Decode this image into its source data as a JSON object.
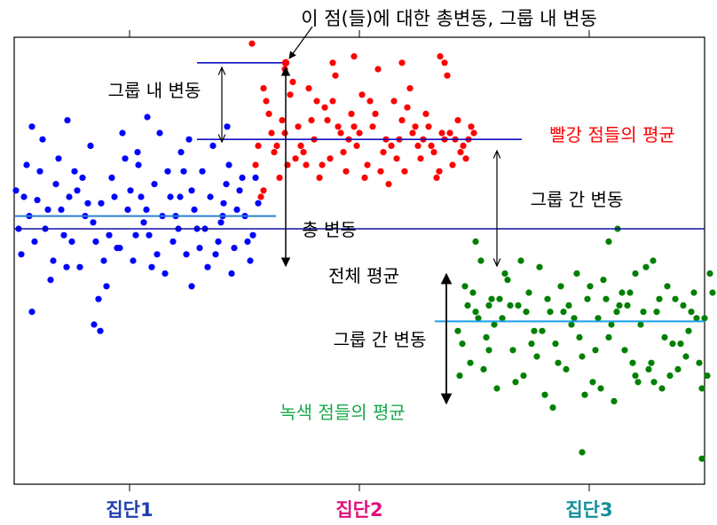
{
  "chart_data": {
    "type": "scatter",
    "y_range": [
      -40,
      100
    ],
    "grand_mean": 40,
    "categories": [
      "집단1",
      "집단2",
      "집단3"
    ],
    "category_colors": [
      "#1f3fb0",
      "#e0107a",
      "#14909a"
    ],
    "groups": [
      {
        "name": "집단1",
        "color": "#0000ff",
        "mean": 44,
        "x_range": [
          0,
          280
        ],
        "points": [
          [
            2,
            52
          ],
          [
            8,
            32
          ],
          [
            14,
            60
          ],
          [
            20,
            14
          ],
          [
            26,
            49
          ],
          [
            32,
            68
          ],
          [
            38,
            46
          ],
          [
            44,
            30
          ],
          [
            50,
            62
          ],
          [
            56,
            38
          ],
          [
            62,
            50
          ],
          [
            68,
            58
          ],
          [
            74,
            28
          ],
          [
            80,
            44
          ],
          [
            86,
            66
          ],
          [
            92,
            36
          ],
          [
            98,
            48
          ],
          [
            104,
            22
          ],
          [
            110,
            56
          ],
          [
            116,
            34
          ],
          [
            122,
            70
          ],
          [
            128,
            46
          ],
          [
            134,
            30
          ],
          [
            140,
            60
          ],
          [
            146,
            42
          ],
          [
            152,
            38
          ],
          [
            158,
            54
          ],
          [
            164,
            70
          ],
          [
            170,
            26
          ],
          [
            176,
            50
          ],
          [
            182,
            44
          ],
          [
            188,
            64
          ],
          [
            194,
            32
          ],
          [
            200,
            52
          ],
          [
            206,
            40
          ],
          [
            212,
            58
          ],
          [
            218,
            28
          ],
          [
            224,
            66
          ],
          [
            230,
            36
          ],
          [
            236,
            48
          ],
          [
            242,
            60
          ],
          [
            248,
            34
          ],
          [
            254,
            52
          ],
          [
            260,
            44
          ],
          [
            266,
            30
          ],
          [
            272,
            56
          ],
          [
            5,
            40
          ],
          [
            17,
            44
          ],
          [
            29,
            58
          ],
          [
            41,
            24
          ],
          [
            53,
            46
          ],
          [
            65,
            36
          ],
          [
            77,
            56
          ],
          [
            89,
            42
          ],
          [
            101,
            30
          ],
          [
            113,
            50
          ],
          [
            125,
            62
          ],
          [
            137,
            38
          ],
          [
            149,
            46
          ],
          [
            161,
            32
          ],
          [
            173,
            58
          ],
          [
            185,
            40
          ],
          [
            197,
            68
          ],
          [
            209,
            34
          ],
          [
            221,
            50
          ],
          [
            233,
            42
          ],
          [
            245,
            26
          ],
          [
            257,
            56
          ],
          [
            269,
            38
          ],
          [
            11,
            50
          ],
          [
            35,
            40
          ],
          [
            59,
            28
          ],
          [
            83,
            48
          ],
          [
            107,
            38
          ],
          [
            131,
            52
          ],
          [
            155,
            28
          ],
          [
            179,
            36
          ],
          [
            203,
            46
          ],
          [
            227,
            32
          ],
          [
            251,
            46
          ],
          [
            275,
            48
          ],
          [
            47,
            54
          ],
          [
            95,
            18
          ],
          [
            119,
            34
          ],
          [
            143,
            50
          ],
          [
            167,
            44
          ],
          [
            191,
            58
          ],
          [
            215,
            40
          ],
          [
            239,
            54
          ],
          [
            263,
            36
          ],
          [
            23,
            36
          ],
          [
            71,
            52
          ],
          [
            97,
            8
          ],
          [
            139,
            64
          ],
          [
            187,
            50
          ],
          [
            235,
            44
          ],
          [
            20,
            72
          ],
          [
            90,
            10
          ],
          [
            150,
            75
          ],
          [
            200,
            22
          ],
          [
            60,
            74
          ],
          [
            240,
            72
          ]
        ]
      },
      {
        "name": "집단2",
        "color": "#ff0000",
        "mean": 68,
        "x_range": [
          265,
          520
        ],
        "points": [
          [
            268,
            98
          ],
          [
            272,
            60
          ],
          [
            278,
            50
          ],
          [
            284,
            80
          ],
          [
            290,
            70
          ],
          [
            296,
            66
          ],
          [
            302,
            74
          ],
          [
            308,
            60
          ],
          [
            314,
            86
          ],
          [
            320,
            72
          ],
          [
            326,
            64
          ],
          [
            332,
            84
          ],
          [
            338,
            68
          ],
          [
            344,
            56
          ],
          [
            350,
            78
          ],
          [
            356,
            62
          ],
          [
            362,
            88
          ],
          [
            368,
            70
          ],
          [
            374,
            58
          ],
          [
            380,
            76
          ],
          [
            386,
            66
          ],
          [
            392,
            82
          ],
          [
            398,
            60
          ],
          [
            404,
            72
          ],
          [
            410,
            90
          ],
          [
            416,
            64
          ],
          [
            422,
            54
          ],
          [
            428,
            80
          ],
          [
            434,
            68
          ],
          [
            440,
            58
          ],
          [
            446,
            84
          ],
          [
            452,
            72
          ],
          [
            458,
            62
          ],
          [
            464,
            76
          ],
          [
            470,
            66
          ],
          [
            476,
            56
          ],
          [
            482,
            70
          ],
          [
            488,
            88
          ],
          [
            494,
            60
          ],
          [
            500,
            74
          ],
          [
            506,
            66
          ],
          [
            512,
            68
          ],
          [
            518,
            70
          ],
          [
            275,
            66
          ],
          [
            287,
            76
          ],
          [
            299,
            56
          ],
          [
            311,
            82
          ],
          [
            323,
            66
          ],
          [
            335,
            74
          ],
          [
            347,
            60
          ],
          [
            359,
            80
          ],
          [
            371,
            64
          ],
          [
            383,
            72
          ],
          [
            395,
            56
          ],
          [
            407,
            76
          ],
          [
            419,
            68
          ],
          [
            431,
            62
          ],
          [
            443,
            78
          ],
          [
            455,
            66
          ],
          [
            467,
            72
          ],
          [
            479,
            58
          ],
          [
            491,
            70
          ],
          [
            503,
            64
          ],
          [
            515,
            72
          ],
          [
            281,
            84
          ],
          [
            305,
            70
          ],
          [
            329,
            60
          ],
          [
            353,
            74
          ],
          [
            377,
            68
          ],
          [
            401,
            80
          ],
          [
            425,
            66
          ],
          [
            449,
            70
          ],
          [
            473,
            64
          ],
          [
            497,
            68
          ],
          [
            293,
            64
          ],
          [
            341,
            80
          ],
          [
            389,
            70
          ],
          [
            437,
            74
          ],
          [
            485,
            68
          ],
          [
            509,
            62
          ],
          [
            317,
            62
          ],
          [
            365,
            72
          ],
          [
            413,
            58
          ],
          [
            461,
            68
          ],
          [
            281,
            52
          ],
          [
            437,
            92
          ],
          [
            305,
            90
          ],
          [
            485,
            92
          ],
          [
            383,
            94
          ],
          [
            359,
            92
          ],
          [
            480,
            94
          ]
        ]
      },
      {
        "name": "집단3",
        "color": "#008000",
        "mean": 11,
        "x_range": [
          495,
          790
        ],
        "points": [
          [
            500,
            8
          ],
          [
            508,
            22
          ],
          [
            514,
            -2
          ],
          [
            520,
            14
          ],
          [
            526,
            30
          ],
          [
            532,
            6
          ],
          [
            538,
            18
          ],
          [
            544,
            -10
          ],
          [
            550,
            12
          ],
          [
            556,
            24
          ],
          [
            562,
            2
          ],
          [
            568,
            16
          ],
          [
            574,
            -6
          ],
          [
            580,
            20
          ],
          [
            586,
            8
          ],
          [
            592,
            28
          ],
          [
            598,
            -12
          ],
          [
            604,
            14
          ],
          [
            610,
            4
          ],
          [
            616,
            22
          ],
          [
            622,
            -4
          ],
          [
            628,
            10
          ],
          [
            634,
            26
          ],
          [
            640,
            0
          ],
          [
            646,
            18
          ],
          [
            652,
            -8
          ],
          [
            658,
            12
          ],
          [
            664,
            24
          ],
          [
            670,
            6
          ],
          [
            676,
            -14
          ],
          [
            682,
            16
          ],
          [
            688,
            2
          ],
          [
            694,
            20
          ],
          [
            700,
            -6
          ],
          [
            706,
            10
          ],
          [
            712,
            28
          ],
          [
            718,
            -2
          ],
          [
            724,
            14
          ],
          [
            730,
            -10
          ],
          [
            736,
            22
          ],
          [
            742,
            4
          ],
          [
            748,
            -4
          ],
          [
            754,
            16
          ],
          [
            760,
            8
          ],
          [
            766,
            20
          ],
          [
            772,
            -2
          ],
          [
            778,
            12
          ],
          [
            784,
            26
          ],
          [
            505,
            4
          ],
          [
            517,
            20
          ],
          [
            529,
            -4
          ],
          [
            541,
            10
          ],
          [
            553,
            26
          ],
          [
            565,
            -8
          ],
          [
            577,
            14
          ],
          [
            589,
            0
          ],
          [
            601,
            18
          ],
          [
            613,
            -2
          ],
          [
            625,
            16
          ],
          [
            637,
            6
          ],
          [
            649,
            22
          ],
          [
            661,
            -10
          ],
          [
            673,
            10
          ],
          [
            685,
            20
          ],
          [
            697,
            -2
          ],
          [
            709,
            14
          ],
          [
            721,
            -8
          ],
          [
            733,
            6
          ],
          [
            745,
            18
          ],
          [
            757,
            0
          ],
          [
            769,
            12
          ],
          [
            781,
            -6
          ],
          [
            511,
            16
          ],
          [
            535,
            2
          ],
          [
            559,
            16
          ],
          [
            583,
            4
          ],
          [
            607,
            -16
          ],
          [
            631,
            12
          ],
          [
            655,
            2
          ],
          [
            679,
            14
          ],
          [
            703,
            -8
          ],
          [
            727,
            18
          ],
          [
            751,
            4
          ],
          [
            775,
            -10
          ],
          [
            523,
            12
          ],
          [
            571,
            30
          ],
          [
            619,
            14
          ],
          [
            667,
            18
          ],
          [
            715,
            -4
          ],
          [
            763,
            14
          ],
          [
            547,
            18
          ],
          [
            595,
            8
          ],
          [
            643,
            -12
          ],
          [
            691,
            16
          ],
          [
            739,
            -6
          ],
          [
            787,
            20
          ],
          [
            720,
            30
          ],
          [
            502,
            -6
          ],
          [
            680,
            40
          ],
          [
            520,
            36
          ],
          [
            640,
            -30
          ],
          [
            775,
            -32
          ],
          [
            535,
            16
          ],
          [
            700,
            26
          ],
          [
            670,
            36
          ]
        ]
      }
    ],
    "annotations": {
      "point_label": "이 점(들)에 대한 총변동, 그룹 내 변동",
      "within_label": "그룹 내 변동",
      "red_mean_label": "빨강 점들의 평균",
      "between_label_1": "그룹 간 변동",
      "total_label": "총 변동",
      "grand_mean_label": "전체 평균",
      "between_label_2": "그룹 간 변동",
      "green_mean_label": "녹색 점들의 평균"
    }
  }
}
